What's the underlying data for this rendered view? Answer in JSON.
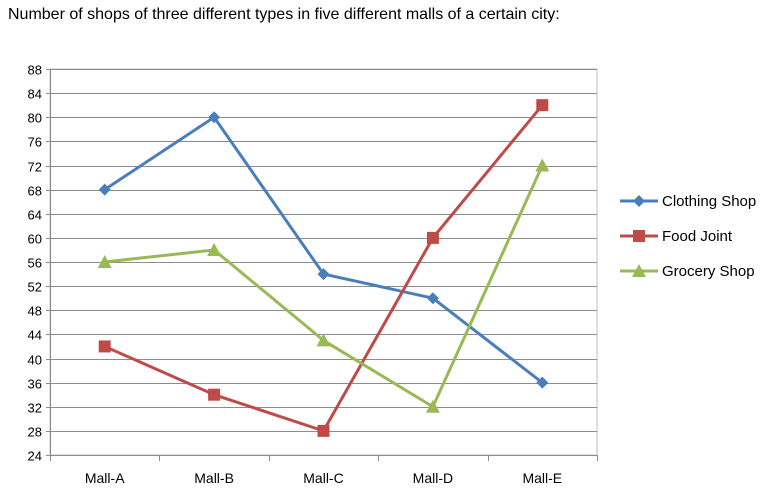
{
  "chart_data": {
    "type": "line",
    "title": "Number of shops of three different types in five different malls of a certain city:",
    "xlabel": "",
    "ylabel": "",
    "categories": [
      "Mall-A",
      "Mall-B",
      "Mall-C",
      "Mall-D",
      "Mall-E"
    ],
    "ylim": [
      24,
      88
    ],
    "yticks": [
      24,
      28,
      32,
      36,
      40,
      44,
      48,
      52,
      56,
      60,
      64,
      68,
      72,
      76,
      80,
      84,
      88
    ],
    "grid": true,
    "legend_position": "right",
    "series": [
      {
        "name": "Clothing Shop",
        "values": [
          68,
          80,
          54,
          50,
          36
        ],
        "color": "#4a7ebb",
        "marker": "diamond"
      },
      {
        "name": "Food Joint",
        "values": [
          42,
          34,
          28,
          60,
          82
        ],
        "color": "#be4b48",
        "marker": "square"
      },
      {
        "name": "Grocery Shop",
        "values": [
          56,
          58,
          43,
          32,
          72
        ],
        "color": "#98b954",
        "marker": "triangle"
      }
    ]
  }
}
